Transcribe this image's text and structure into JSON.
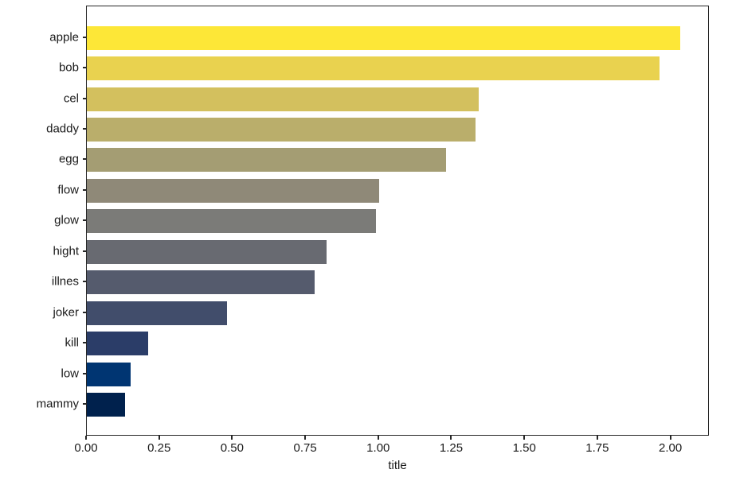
{
  "chart_data": {
    "type": "bar",
    "orientation": "horizontal",
    "title": "",
    "xlabel": "title",
    "ylabel": "",
    "categories": [
      "apple",
      "bob",
      "cel",
      "daddy",
      "egg",
      "flow",
      "glow",
      "hight",
      "illnes",
      "joker",
      "kill",
      "low",
      "mammy"
    ],
    "values": [
      2.03,
      1.96,
      1.34,
      1.33,
      1.23,
      1.0,
      0.99,
      0.82,
      0.78,
      0.48,
      0.21,
      0.15,
      0.13
    ],
    "bar_colors": [
      "#FDE737",
      "#E9D24F",
      "#D3C05E",
      "#BAAE6B",
      "#A49D73",
      "#8F8978",
      "#7B7B78",
      "#686A71",
      "#555B6D",
      "#414D6B",
      "#2B3D68",
      "#003572",
      "#00214D"
    ],
    "colormap": "cividis",
    "xlim": [
      0,
      2.132
    ],
    "x_ticks": [
      {
        "value": 0.0,
        "label": "0.00"
      },
      {
        "value": 0.25,
        "label": "0.25"
      },
      {
        "value": 0.5,
        "label": "0.50"
      },
      {
        "value": 0.75,
        "label": "0.75"
      },
      {
        "value": 1.0,
        "label": "1.00"
      },
      {
        "value": 1.25,
        "label": "1.25"
      },
      {
        "value": 1.5,
        "label": "1.50"
      },
      {
        "value": 1.75,
        "label": "1.75"
      },
      {
        "value": 2.0,
        "label": "2.00"
      }
    ],
    "grid": false,
    "legend": null
  },
  "style_colors": {
    "background": "#ffffff",
    "spine": "#262626",
    "text": "#1a1a1a"
  }
}
